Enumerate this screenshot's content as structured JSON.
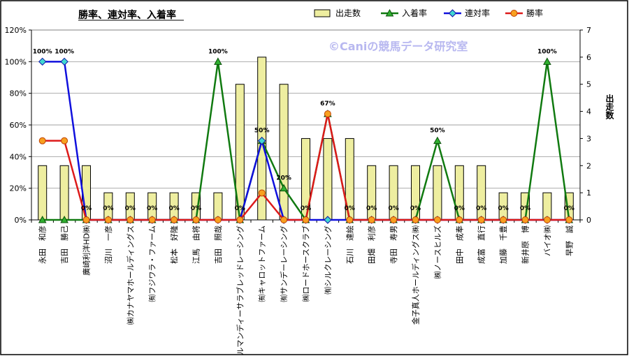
{
  "chart_data": {
    "type": "bar",
    "title": "勝率、連対率、入着率",
    "watermark": "©Caniの競馬データ研究室",
    "categories": [
      "永田　和彦",
      "吉田　勝己",
      "廣崎利洋HD㈱",
      "沼川　一彦",
      "㈱カナヤマホールディングス",
      "㈲フジワラ・ファーム",
      "松本　好隆",
      "江馬　由将",
      "吉田　照哉",
      "㈱ノルマンディーサラブレッドレーシング",
      "㈲キャロットファーム",
      "㈲サンデーレーシング",
      "㈱ロードホースクラブ",
      "㈲シルクレーシング",
      "石川　達絵",
      "田畑　利彦",
      "寺田　寿男",
      "金子真人ホールディングス㈱",
      "㈱ノースヒルズ",
      "田中　成奉",
      "成富　直行",
      "加藤　千豊",
      "新井原　博",
      "バイオ㈱",
      "早野　誠"
    ],
    "series": [
      {
        "name": "出走数",
        "axis": "right",
        "kind": "bar",
        "color": "#eeeea0",
        "values": [
          2,
          2,
          2,
          1,
          1,
          1,
          1,
          1,
          1,
          5,
          6,
          5,
          3,
          3,
          3,
          2,
          2,
          2,
          2,
          2,
          2,
          1,
          1,
          1,
          1
        ]
      },
      {
        "name": "入着率",
        "axis": "left",
        "kind": "line",
        "color": "#107a10",
        "marker": "triangle",
        "values": [
          0,
          0,
          0,
          0,
          0,
          0,
          0,
          0,
          100,
          0,
          50,
          20,
          0,
          67,
          0,
          0,
          0,
          0,
          50,
          0,
          0,
          0,
          0,
          100,
          0
        ]
      },
      {
        "name": "連対率",
        "axis": "left",
        "kind": "line",
        "color": "#1010dd",
        "marker": "diamond",
        "values": [
          100,
          100,
          0,
          0,
          0,
          0,
          0,
          0,
          0,
          0,
          50,
          0,
          0,
          0,
          0,
          0,
          0,
          0,
          0,
          0,
          0,
          0,
          0,
          0,
          0
        ]
      },
      {
        "name": "勝率",
        "axis": "left",
        "kind": "line",
        "color": "#dd1a1a",
        "marker": "circle",
        "values": [
          50,
          50,
          0,
          0,
          0,
          0,
          0,
          0,
          0,
          0,
          17,
          0,
          0,
          67,
          0,
          0,
          0,
          0,
          0,
          0,
          0,
          0,
          0,
          0,
          0
        ]
      }
    ],
    "data_labels": [
      "100%",
      "100%",
      "0%",
      "0%",
      "0%",
      "0%",
      "0%",
      "0%",
      "100%",
      "0%",
      "50%",
      "20%",
      "0%",
      "67%",
      "0%",
      "0%",
      "0%",
      "0%",
      "50%",
      "0%",
      "0%",
      "0%",
      "0%",
      "100%",
      "0%"
    ],
    "ylim_left": [
      0,
      120
    ],
    "left_ticks": [
      "0%",
      "20%",
      "40%",
      "60%",
      "80%",
      "100%",
      "120%"
    ],
    "ylim_right": [
      0,
      7
    ],
    "right_ticks": [
      "0",
      "1",
      "2",
      "3",
      "4",
      "5",
      "6",
      "7"
    ],
    "ylabel_right": "出走数",
    "legend_position": "top"
  }
}
